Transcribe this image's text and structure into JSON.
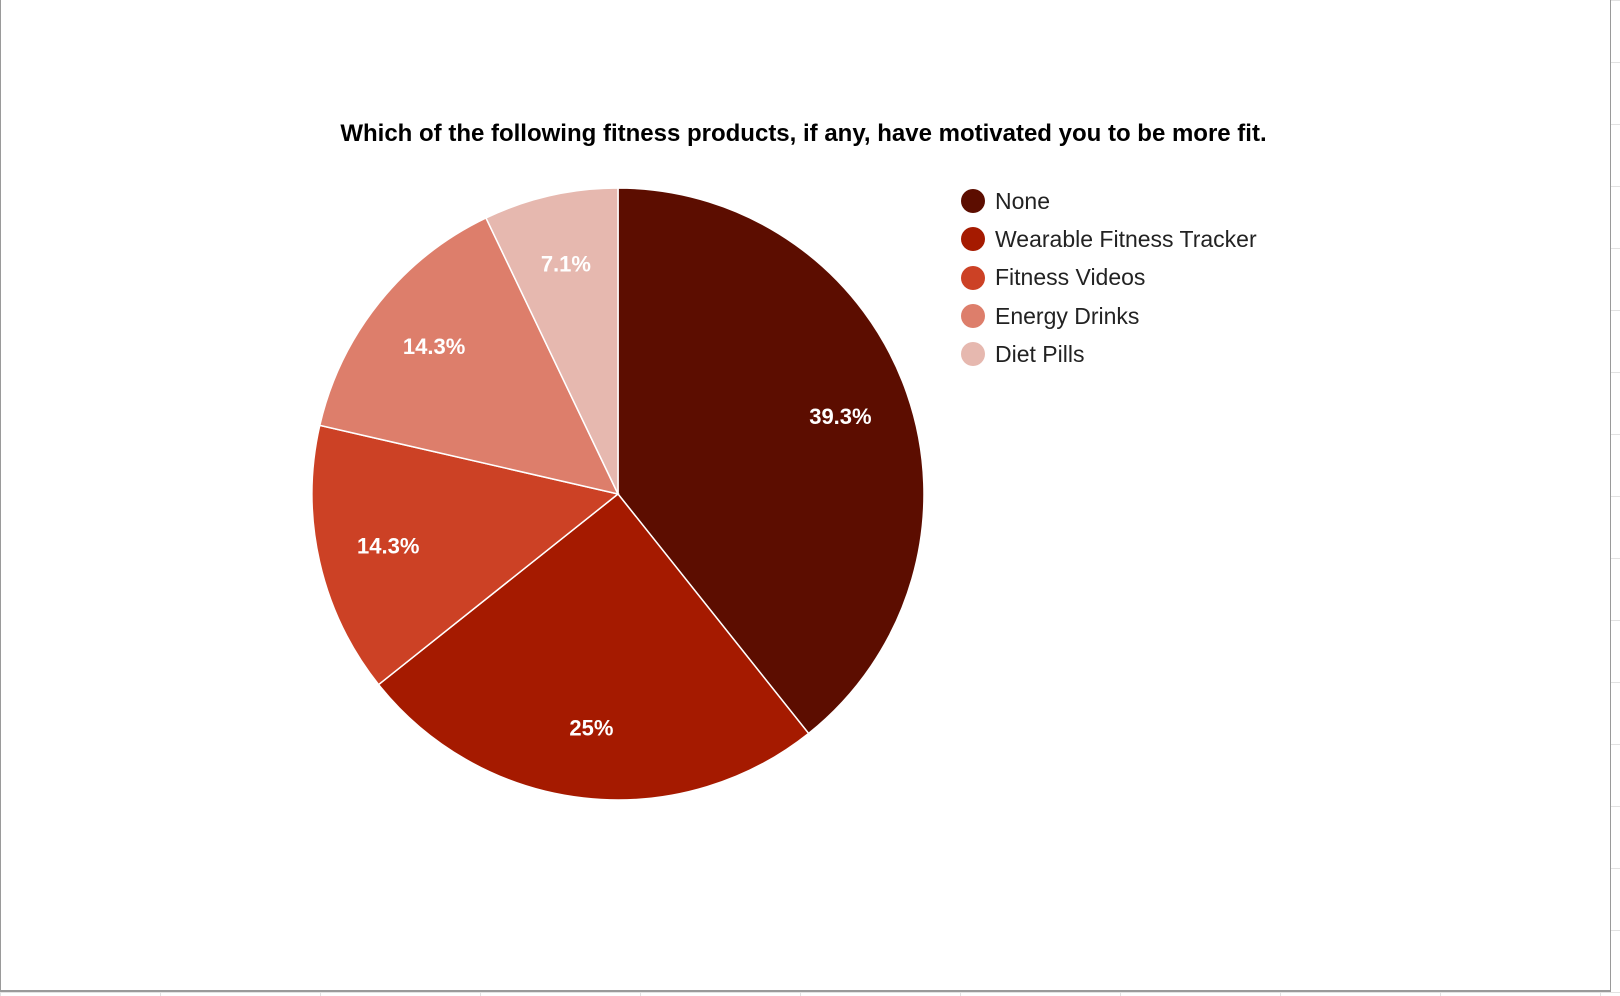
{
  "chart_data": {
    "type": "pie",
    "title": "Which of the following fitness products, if any, have motivated you to be more fit.",
    "slices": [
      {
        "label": "None",
        "value": 39.3,
        "display": "39.3%",
        "color": "#5c0d00"
      },
      {
        "label": "Wearable Fitness Tracker",
        "value": 25,
        "display": "25%",
        "color": "#a51a00"
      },
      {
        "label": "Fitness Videos",
        "value": 14.3,
        "display": "14.3%",
        "color": "#cc4125"
      },
      {
        "label": "Energy Drinks",
        "value": 14.3,
        "display": "14.3%",
        "color": "#dd7e6b"
      },
      {
        "label": "Diet Pills",
        "value": 7.1,
        "display": "7.1%",
        "color": "#e6b8af"
      }
    ],
    "start_angle_deg": 0,
    "direction": "clockwise",
    "legend_position": "right"
  }
}
